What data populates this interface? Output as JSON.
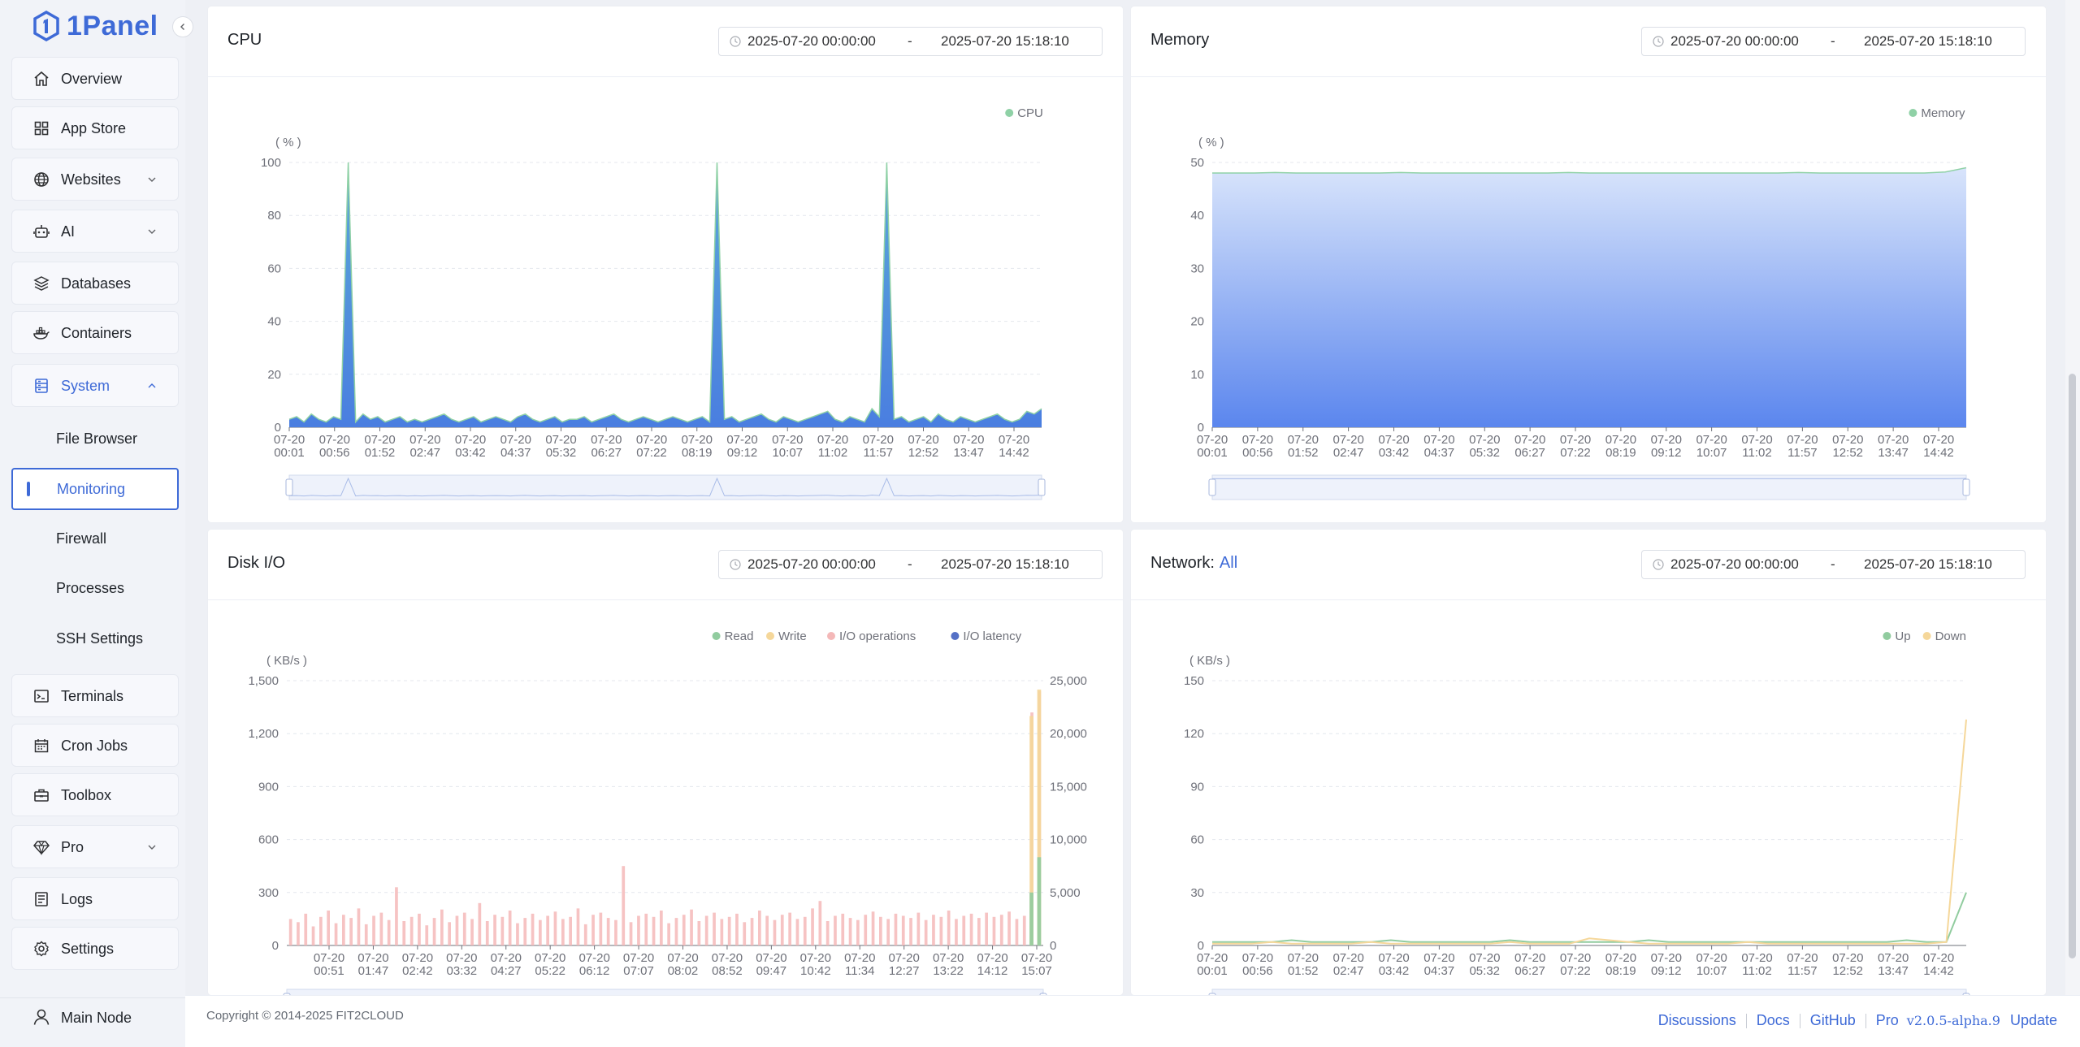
{
  "app": {
    "logo_text": "1Panel"
  },
  "sidebar": {
    "items": [
      {
        "key": "overview",
        "label": "Overview",
        "icon": "home-icon"
      },
      {
        "key": "appstore",
        "label": "App Store",
        "icon": "grid-icon"
      },
      {
        "key": "websites",
        "label": "Websites",
        "icon": "globe-icon",
        "has_children": true
      },
      {
        "key": "ai",
        "label": "AI",
        "icon": "robot-icon",
        "has_children": true
      },
      {
        "key": "databases",
        "label": "Databases",
        "icon": "layers-icon"
      },
      {
        "key": "containers",
        "label": "Containers",
        "icon": "docker-icon"
      },
      {
        "key": "system",
        "label": "System",
        "icon": "server-icon",
        "has_children": true,
        "expanded": true
      },
      {
        "key": "terminals",
        "label": "Terminals",
        "icon": "terminal-icon"
      },
      {
        "key": "cron",
        "label": "Cron Jobs",
        "icon": "calendar-icon"
      },
      {
        "key": "toolbox",
        "label": "Toolbox",
        "icon": "toolbox-icon"
      },
      {
        "key": "pro",
        "label": "Pro",
        "icon": "diamond-icon",
        "has_children": true
      },
      {
        "key": "logs",
        "label": "Logs",
        "icon": "document-icon"
      },
      {
        "key": "settings",
        "label": "Settings",
        "icon": "gear-icon"
      }
    ],
    "system_children": [
      {
        "label": "File Browser",
        "active": false
      },
      {
        "label": "Monitoring",
        "active": true
      },
      {
        "label": "Firewall",
        "active": false
      },
      {
        "label": "Processes",
        "active": false
      },
      {
        "label": "SSH Settings",
        "active": false
      }
    ],
    "node": {
      "label": "Main Node",
      "icon": "user-icon"
    }
  },
  "panels": {
    "cpu": {
      "title": "CPU",
      "range": {
        "start": "2025-07-20 00:00:00",
        "sep": "-",
        "end": "2025-07-20 15:18:10"
      }
    },
    "memory": {
      "title": "Memory",
      "range": {
        "start": "2025-07-20 00:00:00",
        "sep": "-",
        "end": "2025-07-20 15:18:10"
      }
    },
    "disk": {
      "title": "Disk I/O",
      "range": {
        "start": "2025-07-20 00:00:00",
        "sep": "-",
        "end": "2025-07-20 15:18:10"
      }
    },
    "network": {
      "title": "Network:",
      "filter": "All",
      "range": {
        "start": "2025-07-20 00:00:00",
        "sep": "-",
        "end": "2025-07-20 15:18:10"
      }
    }
  },
  "chart_data": [
    {
      "id": "cpu",
      "type": "area",
      "unit_label": "( % )",
      "ylim": [
        0,
        100
      ],
      "yticks": [
        0,
        20,
        40,
        60,
        80,
        100
      ],
      "xticks": [
        "07-20\n00:01",
        "07-20\n00:56",
        "07-20\n01:52",
        "07-20\n02:47",
        "07-20\n03:42",
        "07-20\n04:37",
        "07-20\n05:32",
        "07-20\n06:27",
        "07-20\n07:22",
        "07-20\n08:19",
        "07-20\n09:12",
        "07-20\n10:07",
        "07-20\n11:02",
        "07-20\n11:57",
        "07-20\n12:52",
        "07-20\n13:47",
        "07-20\n14:42"
      ],
      "legend": [
        "CPU"
      ],
      "legend_position": "top-right",
      "colors": {
        "line": "#8fd1a6",
        "fill_top": "#5aa8d8",
        "fill_bottom": "#4a7ee0"
      },
      "series": [
        {
          "name": "CPU",
          "values": [
            3,
            4,
            2,
            5,
            3,
            2,
            4,
            3,
            100,
            2,
            5,
            3,
            4,
            2,
            3,
            4,
            2,
            3,
            2,
            3,
            4,
            5,
            3,
            2,
            3,
            4,
            2,
            3,
            4,
            3,
            2,
            4,
            5,
            3,
            2,
            3,
            4,
            2,
            3,
            3,
            4,
            2,
            3,
            4,
            5,
            3,
            2,
            3,
            4,
            3,
            2,
            3,
            4,
            3,
            2,
            3,
            4,
            2,
            100,
            3,
            4,
            2,
            3,
            4,
            5,
            3,
            2,
            4,
            3,
            2,
            3,
            4,
            5,
            6,
            3,
            2,
            4,
            3,
            2,
            7,
            4,
            100,
            3,
            4,
            2,
            3,
            4,
            2,
            5,
            3,
            2,
            4,
            3,
            2,
            3,
            4,
            5,
            3,
            2,
            3,
            6,
            5,
            7
          ]
        }
      ]
    },
    {
      "id": "memory",
      "type": "area",
      "unit_label": "( % )",
      "ylim": [
        0,
        50
      ],
      "yticks": [
        0,
        10,
        20,
        30,
        40,
        50
      ],
      "xticks": [
        "07-20\n00:01",
        "07-20\n00:56",
        "07-20\n01:52",
        "07-20\n02:47",
        "07-20\n03:42",
        "07-20\n04:37",
        "07-20\n05:32",
        "07-20\n06:27",
        "07-20\n07:22",
        "07-20\n08:19",
        "07-20\n09:12",
        "07-20\n10:07",
        "07-20\n11:02",
        "07-20\n11:57",
        "07-20\n12:52",
        "07-20\n13:47",
        "07-20\n14:42"
      ],
      "legend": [
        "Memory"
      ],
      "legend_position": "top-right",
      "colors": {
        "line": "#8fd1a6",
        "fill_top": "#d8e4fb",
        "fill_bottom": "#5b86ee"
      },
      "series": [
        {
          "name": "Memory",
          "values": [
            48,
            48,
            48,
            48.1,
            48,
            48,
            48,
            48,
            48,
            48.1,
            48,
            48,
            48,
            48,
            48,
            48,
            48,
            48.1,
            48,
            48,
            48,
            48,
            48,
            48,
            48,
            48,
            48,
            48,
            48.1,
            48,
            48,
            48,
            48,
            48,
            48,
            48.2,
            49
          ]
        }
      ]
    },
    {
      "id": "disk",
      "type": "bar",
      "unit_label": "( KB/s )",
      "ylim": [
        0,
        1500
      ],
      "yticks": [
        0,
        300,
        600,
        900,
        1200,
        1500
      ],
      "y2lim": [
        0,
        25000
      ],
      "y2ticks": [
        0,
        5000,
        10000,
        15000,
        20000,
        25000
      ],
      "y2tick_labels": [
        "0",
        "5,000",
        "10,000",
        "15,000",
        "20,000",
        "25,000"
      ],
      "ytick_labels": [
        "0",
        "300",
        "600",
        "900",
        "1,200",
        "1,500"
      ],
      "xticks": [
        "07-20\n00:51",
        "07-20\n01:47",
        "07-20\n02:42",
        "07-20\n03:32",
        "07-20\n04:27",
        "07-20\n05:22",
        "07-20\n06:12",
        "07-20\n07:07",
        "07-20\n08:02",
        "07-20\n08:52",
        "07-20\n09:47",
        "07-20\n10:42",
        "07-20\n11:34",
        "07-20\n12:27",
        "07-20\n13:22",
        "07-20\n14:12",
        "07-20\n15:07"
      ],
      "legend": [
        "Read",
        "Write",
        "I/O operations",
        "I/O latency"
      ],
      "legend_position": "top-right",
      "colors": {
        "Read": "#91cc9f",
        "Write": "#f5d79a",
        "I/O operations": "#f4b8b8",
        "I/O latency": "#5470c6"
      },
      "series": [
        {
          "name": "I/O operations",
          "values": [
            2500,
            2200,
            3000,
            1800,
            2700,
            3300,
            2100,
            2900,
            2600,
            3500,
            2000,
            2800,
            3100,
            2400,
            5500,
            2300,
            2700,
            3000,
            1900,
            2600,
            3400,
            2200,
            2800,
            3100,
            2500,
            4000,
            2300,
            2900,
            2700,
            3300,
            2100,
            2600,
            3000,
            2400,
            2800,
            3200,
            2500,
            2700,
            3500,
            2000,
            2900,
            3100,
            2600,
            2400,
            7500,
            2200,
            2800,
            3000,
            2700,
            3300,
            2100,
            2600,
            2900,
            3400,
            2300,
            2800,
            3100,
            2500,
            2700,
            3000,
            2200,
            2600,
            3300,
            2800,
            2400,
            2900,
            3100,
            2500,
            2700,
            3500,
            4200,
            2300,
            2800,
            3000,
            2600,
            2400,
            2900,
            3200,
            2700,
            2500,
            3000,
            2800,
            2600,
            3100,
            2400,
            2900,
            2700,
            3300,
            2500,
            2800,
            3000,
            2600,
            3100,
            2700,
            2900,
            3200,
            2500,
            2800,
            22000,
            24000
          ]
        },
        {
          "name": "Write",
          "values": [
            0,
            0,
            0,
            0,
            0,
            0,
            0,
            0,
            0,
            0,
            0,
            0,
            0,
            0,
            0,
            0,
            0,
            0,
            0,
            0,
            0,
            0,
            0,
            0,
            0,
            0,
            0,
            0,
            0,
            0,
            0,
            0,
            0,
            0,
            0,
            0,
            0,
            0,
            0,
            0,
            0,
            0,
            0,
            0,
            0,
            0,
            0,
            0,
            0,
            0,
            0,
            0,
            0,
            0,
            0,
            0,
            0,
            0,
            0,
            0,
            0,
            0,
            0,
            0,
            0,
            0,
            0,
            0,
            0,
            0,
            0,
            0,
            0,
            0,
            0,
            0,
            0,
            0,
            0,
            0,
            0,
            0,
            0,
            0,
            0,
            0,
            0,
            0,
            0,
            0,
            0,
            0,
            0,
            0,
            0,
            0,
            0,
            0,
            1300,
            1450
          ]
        },
        {
          "name": "Read",
          "values": [
            0,
            0,
            0,
            0,
            0,
            0,
            0,
            0,
            0,
            0,
            0,
            0,
            0,
            0,
            0,
            0,
            0,
            0,
            0,
            0,
            0,
            0,
            0,
            0,
            0,
            0,
            0,
            0,
            0,
            0,
            0,
            0,
            0,
            0,
            0,
            0,
            0,
            0,
            0,
            0,
            0,
            0,
            0,
            0,
            0,
            0,
            0,
            0,
            0,
            0,
            0,
            0,
            0,
            0,
            0,
            0,
            0,
            0,
            0,
            0,
            0,
            0,
            0,
            0,
            0,
            0,
            0,
            0,
            0,
            0,
            0,
            0,
            0,
            0,
            0,
            0,
            0,
            0,
            0,
            0,
            0,
            0,
            0,
            0,
            0,
            0,
            0,
            0,
            0,
            0,
            0,
            0,
            0,
            0,
            0,
            0,
            0,
            0,
            300,
            500
          ]
        }
      ]
    },
    {
      "id": "network",
      "type": "line",
      "unit_label": "( KB/s )",
      "ylim": [
        0,
        150
      ],
      "yticks": [
        0,
        30,
        60,
        90,
        120,
        150
      ],
      "xticks": [
        "07-20\n00:01",
        "07-20\n00:56",
        "07-20\n01:52",
        "07-20\n02:47",
        "07-20\n03:42",
        "07-20\n04:37",
        "07-20\n05:32",
        "07-20\n06:27",
        "07-20\n07:22",
        "07-20\n08:19",
        "07-20\n09:12",
        "07-20\n10:07",
        "07-20\n11:02",
        "07-20\n11:57",
        "07-20\n12:52",
        "07-20\n13:47",
        "07-20\n14:42"
      ],
      "legend": [
        "Up",
        "Down"
      ],
      "legend_position": "top-right",
      "colors": {
        "Up": "#91cc9f",
        "Down": "#f5d79a",
        "extra": "#5470c6"
      },
      "series": [
        {
          "name": "Up",
          "values": [
            2,
            2,
            2,
            2,
            3,
            2,
            2,
            2,
            2,
            3,
            2,
            2,
            2,
            2,
            2,
            3,
            2,
            2,
            2,
            2,
            2,
            2,
            3,
            2,
            2,
            2,
            2,
            2,
            2,
            2,
            2,
            2,
            2,
            2,
            2,
            3,
            2,
            2,
            30
          ]
        },
        {
          "name": "Down",
          "values": [
            1,
            1,
            1,
            2,
            1,
            1,
            1,
            1,
            2,
            1,
            1,
            1,
            1,
            1,
            1,
            2,
            1,
            1,
            1,
            4,
            3,
            2,
            1,
            1,
            1,
            1,
            1,
            2,
            1,
            1,
            1,
            1,
            1,
            1,
            1,
            1,
            1,
            2,
            128
          ]
        }
      ]
    }
  ],
  "footer": {
    "copyright": "Copyright © 2014-2025 FIT2CLOUD",
    "links": {
      "discussions": "Discussions",
      "docs": "Docs",
      "github": "GitHub",
      "pro": "Pro",
      "version": "v2.0.5-alpha.9",
      "update": "Update"
    }
  }
}
